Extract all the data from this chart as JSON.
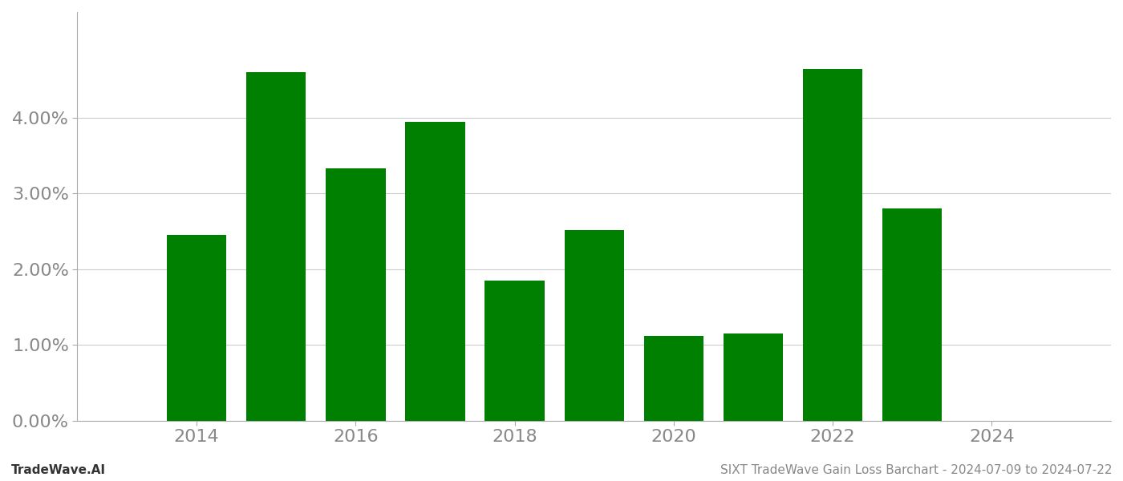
{
  "years": [
    2014,
    2015,
    2016,
    2017,
    2018,
    2019,
    2020,
    2021,
    2022,
    2023
  ],
  "values": [
    0.0245,
    0.046,
    0.0333,
    0.0395,
    0.0185,
    0.0252,
    0.0112,
    0.0115,
    0.0465,
    0.028
  ],
  "bar_color": "#008000",
  "title": "SIXT TradeWave Gain Loss Barchart - 2024-07-09 to 2024-07-22",
  "watermark_left": "TradeWave.AI",
  "ylim": [
    0,
    0.054
  ],
  "yticks": [
    0.0,
    0.01,
    0.02,
    0.03,
    0.04
  ],
  "xlim": [
    2012.5,
    2025.5
  ],
  "xticks": [
    2014,
    2016,
    2018,
    2020,
    2022,
    2024
  ],
  "grid_color": "#cccccc",
  "background_color": "#ffffff",
  "bar_width": 0.75,
  "title_fontsize": 11,
  "watermark_fontsize": 11,
  "tick_fontsize": 16
}
